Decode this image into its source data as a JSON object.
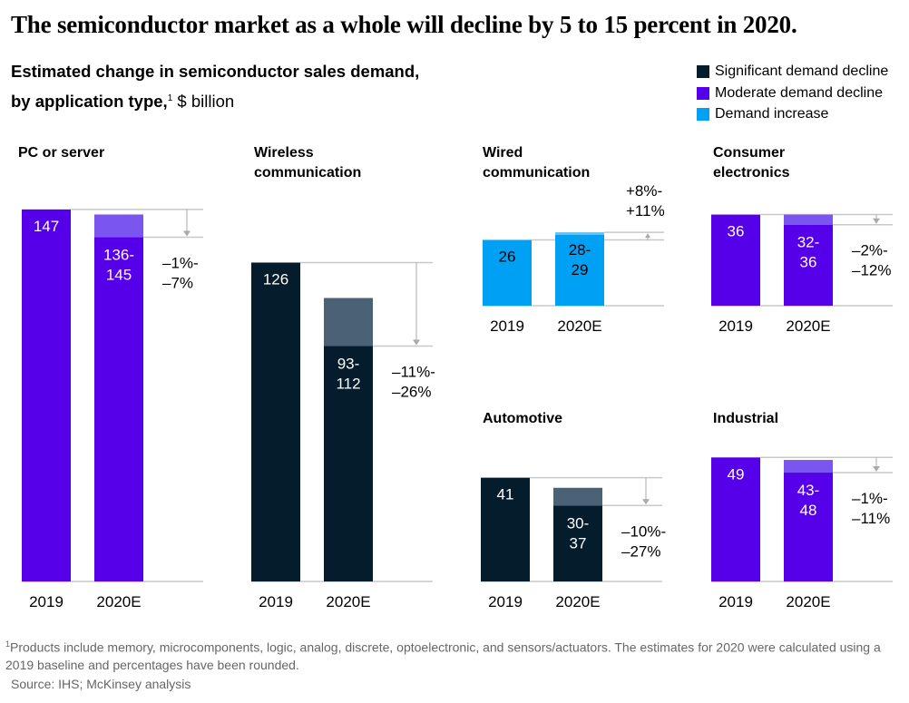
{
  "title": "The semiconductor market as a whole will decline by 5 to 15 percent in 2020.",
  "subtitle": {
    "main": "Estimated change in semiconductor sales demand, by application type,",
    "footnote_mark": "1",
    "unit": "$ billion"
  },
  "legend": [
    {
      "label": "Significant demand decline",
      "color": "#051c2c"
    },
    {
      "label": "Moderate demand decline",
      "color": "#5500e8"
    },
    {
      "label": "Demand increase",
      "color": "#00a0f5"
    }
  ],
  "colors": {
    "significant": "#051c2c",
    "significant_range": "#4a6176",
    "moderate": "#5500e8",
    "moderate_range": "#7a55f0",
    "increase": "#00a0f5",
    "increase_range": "#5bc4f8",
    "grid": "#c8c8c8"
  },
  "chart_data": {
    "type": "bar",
    "categories": [
      "2019",
      "2020E"
    ],
    "panels": [
      {
        "title": "PC or server",
        "type": "moderate",
        "v2019": 147,
        "v2020_low": 136,
        "v2020_high": 145,
        "label2019": "147",
        "label2020": [
          "136-",
          "145"
        ],
        "change": [
          "–1%-",
          "–7%"
        ]
      },
      {
        "title": "Wireless communication",
        "type": "significant",
        "v2019": 126,
        "v2020_low": 93,
        "v2020_high": 112,
        "label2019": "126",
        "label2020": [
          "93-",
          "112"
        ],
        "change": [
          "–11%-",
          "–26%"
        ]
      },
      {
        "title": "Wired communication",
        "type": "increase",
        "v2019": 26,
        "v2020_low": 28,
        "v2020_high": 29,
        "label2019": "26",
        "label2020": [
          "28-",
          "29"
        ],
        "change": [
          "+8%-",
          "+11%"
        ]
      },
      {
        "title": "Consumer electronics",
        "type": "moderate",
        "v2019": 36,
        "v2020_low": 32,
        "v2020_high": 36,
        "label2019": "36",
        "label2020": [
          "32-",
          "36"
        ],
        "change": [
          "–2%-",
          "–12%"
        ]
      },
      {
        "title": "Automotive",
        "type": "significant",
        "v2019": 41,
        "v2020_low": 30,
        "v2020_high": 37,
        "label2019": "41",
        "label2020": [
          "30-",
          "37"
        ],
        "change": [
          "–10%-",
          "–27%"
        ]
      },
      {
        "title": "Industrial",
        "type": "moderate",
        "v2019": 49,
        "v2020_low": 43,
        "v2020_high": 48,
        "label2019": "49",
        "label2020": [
          "43-",
          "48"
        ],
        "change": [
          "–1%-",
          "–11%"
        ]
      }
    ]
  },
  "footnote": {
    "mark": "1",
    "text": "Products include memory, microcomponents, logic, analog, discrete, optoelectronic, and sensors/actuators. The estimates for 2020 were calculated using a 2019 baseline and percentages have been rounded."
  },
  "source": "Source: IHS; McKinsey analysis"
}
